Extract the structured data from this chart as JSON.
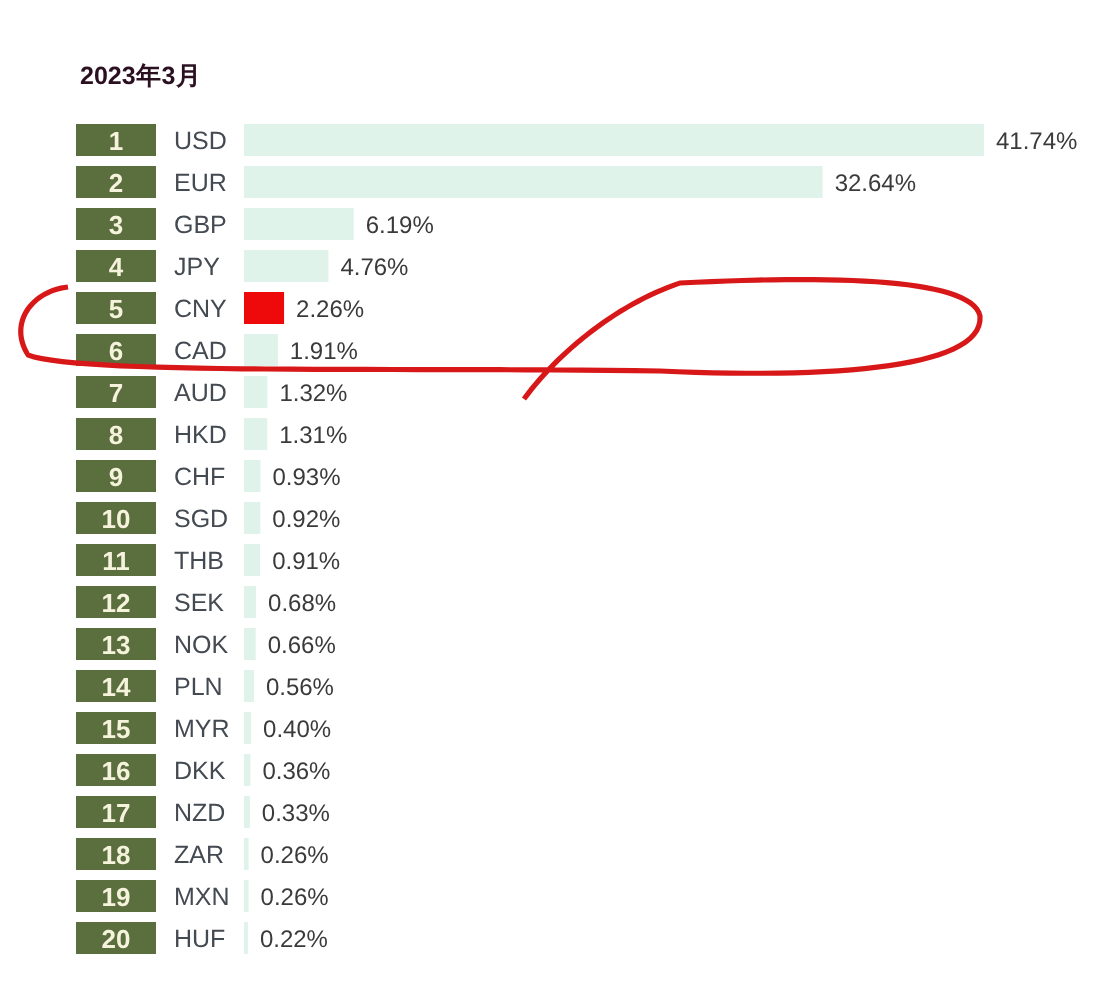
{
  "chart_data": {
    "type": "bar",
    "orientation": "horizontal",
    "title": "2023年3月",
    "categories": [
      "USD",
      "EUR",
      "GBP",
      "JPY",
      "CNY",
      "CAD",
      "AUD",
      "HKD",
      "CHF",
      "SGD",
      "THB",
      "SEK",
      "NOK",
      "PLN",
      "MYR",
      "DKK",
      "NZD",
      "ZAR",
      "MXN",
      "HUF"
    ],
    "y2_categories": [
      "1",
      "2",
      "3",
      "4",
      "5",
      "6",
      "7",
      "8",
      "9",
      "10",
      "11",
      "12",
      "13",
      "14",
      "15",
      "16",
      "17",
      "18",
      "19",
      "20"
    ],
    "values": [
      41.74,
      32.64,
      6.19,
      4.76,
      2.26,
      1.91,
      1.32,
      1.31,
      0.93,
      0.92,
      0.91,
      0.68,
      0.66,
      0.56,
      0.4,
      0.36,
      0.33,
      0.26,
      0.26,
      0.22
    ],
    "value_labels": [
      "41.74%",
      "32.64%",
      "6.19%",
      "4.76%",
      "2.26%",
      "1.91%",
      "1.32%",
      "1.31%",
      "0.93%",
      "0.92%",
      "0.91%",
      "0.68%",
      "0.66%",
      "0.56%",
      "0.40%",
      "0.36%",
      "0.33%",
      "0.26%",
      "0.26%",
      "0.22%"
    ],
    "colors": [
      "#dff3ea",
      "#dff3ea",
      "#dff3ea",
      "#dff3ea",
      "#ee0a0a",
      "#dff3ea",
      "#dff3ea",
      "#dff3ea",
      "#dff3ea",
      "#dff3ea",
      "#dff3ea",
      "#dff3ea",
      "#dff3ea",
      "#dff3ea",
      "#dff3ea",
      "#dff3ea",
      "#dff3ea",
      "#dff3ea",
      "#dff3ea",
      "#dff3ea"
    ]
  }
}
